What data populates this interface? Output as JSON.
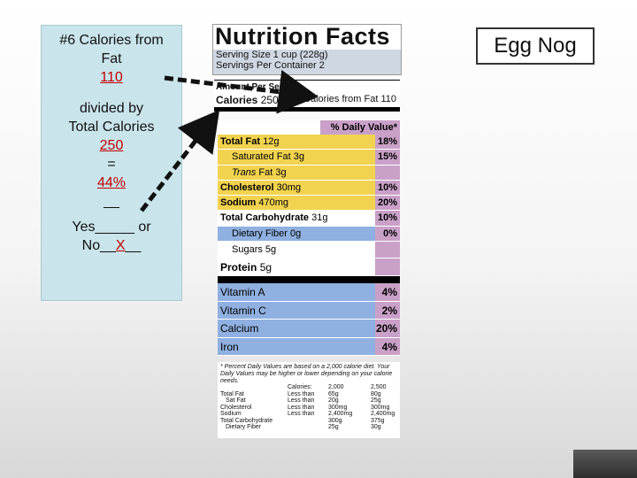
{
  "question": {
    "line1": "#6 Calories from",
    "line2": "Fat",
    "fat_calories": "110",
    "divided_by": "divided by",
    "total_label": "Total Calories",
    "total_calories": "250",
    "equals": "=",
    "percent": "44%",
    "blank": "__",
    "yes_text": "Yes_____ or",
    "no_prefix": "No__",
    "no_mark": "X",
    "no_suffix": "__"
  },
  "title": "Egg Nog",
  "label": {
    "heading": "Nutrition Facts",
    "serving_size": "Serving Size 1 cup (228g)",
    "servings_per_container": "Servings Per Container  2",
    "amount_per_serving": "Amount Per Serving",
    "calories": "Calories 250",
    "calories_from_fat": "Calories from Fat 110",
    "daily_value_header": "% Daily Value*",
    "rows": [
      {
        "name": "Total Fat",
        "amount": "12g",
        "dv": "18%"
      },
      {
        "name": "Saturated Fat",
        "amount": "3g",
        "dv": "15%"
      },
      {
        "name": "Trans",
        "amount": "Fat 3g",
        "dv": ""
      },
      {
        "name": "Cholesterol",
        "amount": "30mg",
        "dv": "10%"
      },
      {
        "name": "Sodium",
        "amount": "470mg",
        "dv": "20%"
      },
      {
        "name": "Total Carbohydrate",
        "amount": "31g",
        "dv": "10%"
      },
      {
        "name": "Dietary Fiber",
        "amount": "0g",
        "dv": "0%"
      },
      {
        "name": "Sugars",
        "amount": "5g",
        "dv": ""
      },
      {
        "name": "Protein",
        "amount": "5g",
        "dv": ""
      }
    ],
    "vitamins": [
      {
        "name": "Vitamin A",
        "dv": "4%"
      },
      {
        "name": "Vitamin C",
        "dv": "2%"
      },
      {
        "name": "Calcium",
        "dv": "20%"
      },
      {
        "name": "Iron",
        "dv": "4%"
      }
    ],
    "footnote": "* Percent Daily Values are based on a 2,000 calorie diet. Your Daily Values may be higher or lower depending on your calorie needs.",
    "footer_table": {
      "header": [
        "Calories:",
        "2,000",
        "2,500"
      ],
      "rows": [
        [
          "Total Fat",
          "Less than",
          "65g",
          "80g"
        ],
        [
          "Sat Fat",
          "Less than",
          "20g",
          "25g"
        ],
        [
          "Cholesterol",
          "Less than",
          "300mg",
          "300mg"
        ],
        [
          "Sodium",
          "Less than",
          "2,400mg",
          "2,400mg"
        ],
        [
          "Total Carbohydrate",
          "",
          "300g",
          "375g"
        ],
        [
          "Dietary Fiber",
          "",
          "25g",
          "30g"
        ]
      ]
    }
  },
  "colors": {
    "panel": "#c9e4ea",
    "answer_red": "#c00000",
    "fat_yellow": "#f2d34f",
    "nutrient_blue": "#8fb0e0",
    "dv_purple": "#c9a0c8"
  }
}
